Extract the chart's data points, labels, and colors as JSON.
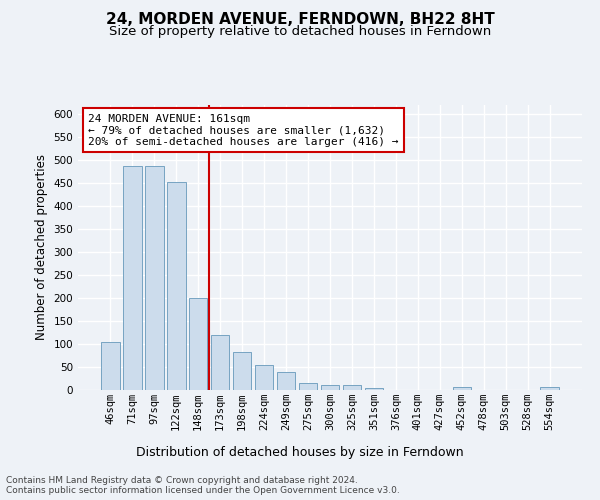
{
  "title1": "24, MORDEN AVENUE, FERNDOWN, BH22 8HT",
  "title2": "Size of property relative to detached houses in Ferndown",
  "xlabel": "Distribution of detached houses by size in Ferndown",
  "ylabel": "Number of detached properties",
  "categories": [
    "46sqm",
    "71sqm",
    "97sqm",
    "122sqm",
    "148sqm",
    "173sqm",
    "198sqm",
    "224sqm",
    "249sqm",
    "275sqm",
    "300sqm",
    "325sqm",
    "351sqm",
    "376sqm",
    "401sqm",
    "427sqm",
    "452sqm",
    "478sqm",
    "503sqm",
    "528sqm",
    "554sqm"
  ],
  "values": [
    105,
    488,
    487,
    452,
    200,
    120,
    83,
    55,
    40,
    15,
    10,
    10,
    5,
    0,
    0,
    0,
    6,
    0,
    0,
    0,
    7
  ],
  "bar_color": "#ccdcec",
  "bar_edge_color": "#6699bb",
  "vline_color": "#cc0000",
  "annotation_text": "24 MORDEN AVENUE: 161sqm\n← 79% of detached houses are smaller (1,632)\n20% of semi-detached houses are larger (416) →",
  "annotation_box_color": "#ffffff",
  "annotation_box_edge": "#cc0000",
  "footer": "Contains HM Land Registry data © Crown copyright and database right 2024.\nContains public sector information licensed under the Open Government Licence v3.0.",
  "ylim": [
    0,
    620
  ],
  "yticks": [
    0,
    50,
    100,
    150,
    200,
    250,
    300,
    350,
    400,
    450,
    500,
    550,
    600
  ],
  "fig_bg": "#eef2f7",
  "axes_bg": "#eef2f7",
  "grid_color": "#ffffff",
  "title1_fontsize": 11,
  "title2_fontsize": 9.5,
  "xlabel_fontsize": 9,
  "ylabel_fontsize": 8.5,
  "tick_fontsize": 7.5,
  "annotation_fontsize": 8,
  "footer_fontsize": 6.5
}
